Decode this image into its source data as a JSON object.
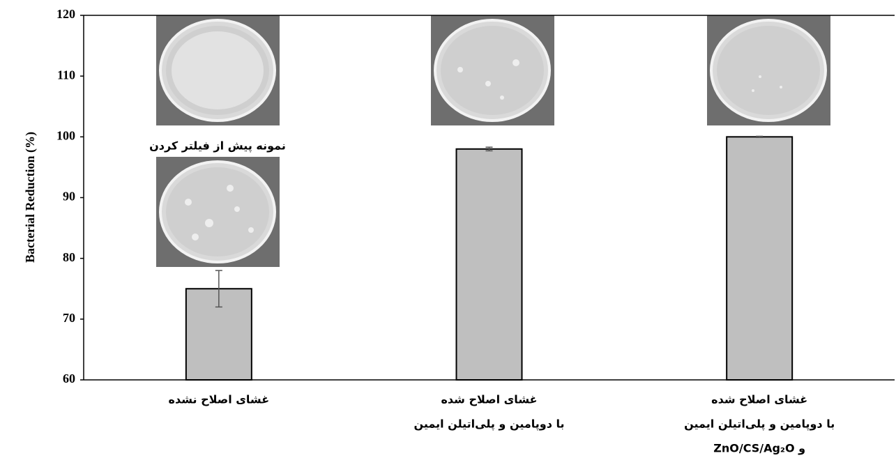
{
  "chart_data": {
    "type": "bar",
    "y_label": "Bacterial Reduction (%)",
    "image_caption": "نمونه پیش از فیلتر کردن",
    "categories": [
      [
        "غشای اصلاح نشده"
      ],
      [
        "غشای اصلاح شده",
        "با دوپامین و پلی‌اتیلن ایمین"
      ],
      [
        "غشای اصلاح شده",
        "با دوپامین و پلی‌اتیلن ایمین",
        "و ZnO/CS/Ag₂O"
      ]
    ],
    "values": [
      75,
      98,
      100
    ],
    "errors": [
      3,
      0.3,
      0.1
    ],
    "color": "#bfbfbf",
    "ylim": [
      60,
      120
    ],
    "yticks": [
      60,
      70,
      80,
      90,
      100,
      110,
      120
    ]
  }
}
